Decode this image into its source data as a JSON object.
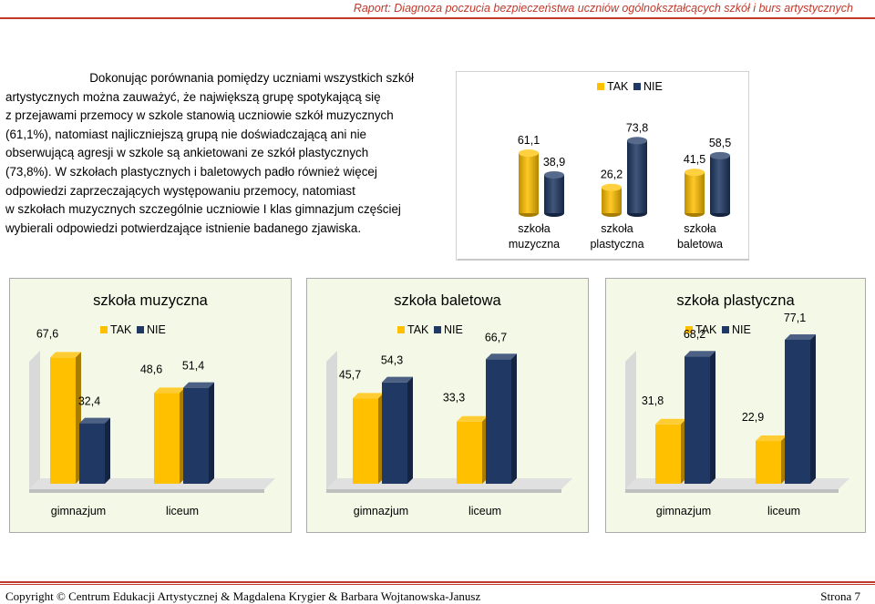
{
  "header": {
    "title": "Raport: Diagnoza poczucia bezpieczeństwa uczniów ogólnokształcących szkół i burs artystycznych"
  },
  "paragraph": {
    "lines": [
      "Dokonując porównania pomiędzy uczniami wszystkich szkół",
      "artystycznych można zauważyć, że największą grupę spotykającą się",
      "z przejawami przemocy w szkole stanowią uczniowie szkół muzycznych",
      "(61,1%), natomiast najliczniejszą grupą nie doświadczającą ani nie",
      "obserwującą agresji w szkole są ankietowani ze szkół plastycznych",
      "(73,8%). W szkołach plastycznych i baletowych padło również więcej",
      "odpowiedzi zaprzeczających występowaniu przemocy, natomiast",
      "w szkołach muzycznych szczególnie uczniowie I klas gimnazjum częściej",
      "wybierali odpowiedzi potwierdzające istnienie badanego zjawiska."
    ]
  },
  "colors": {
    "tak": "#FFC000",
    "nie": "#1F3864",
    "accent": "#C0392B"
  },
  "chart_data": [
    {
      "type": "bar",
      "title": "",
      "categories": [
        "szkoła muzyczna",
        "szkoła plastyczna",
        "szkoła baletowa"
      ],
      "category_lines": [
        [
          "szkoła",
          "muzyczna"
        ],
        [
          "szkoła",
          "plastyczna"
        ],
        [
          "szkoła",
          "baletowa"
        ]
      ],
      "series": [
        {
          "name": "TAK",
          "values": [
            61.1,
            26.2,
            41.5
          ]
        },
        {
          "name": "NIE",
          "values": [
            38.9,
            73.8,
            58.5
          ]
        }
      ],
      "value_labels": [
        [
          "61,1",
          "26,2",
          "41,5"
        ],
        [
          "38,9",
          "73,8",
          "58,5"
        ]
      ],
      "legend": "top",
      "grid": false
    },
    {
      "type": "bar",
      "title": "szkoła muzyczna",
      "categories": [
        "gimnazjum",
        "liceum"
      ],
      "series": [
        {
          "name": "TAK",
          "values": [
            67.6,
            48.6
          ]
        },
        {
          "name": "NIE",
          "values": [
            32.4,
            51.4
          ]
        }
      ],
      "value_labels": [
        [
          "67,6",
          "48,6"
        ],
        [
          "32,4",
          "51,4"
        ]
      ],
      "legend": "top",
      "grid": false
    },
    {
      "type": "bar",
      "title": "szkoła baletowa",
      "categories": [
        "gimnazjum",
        "liceum"
      ],
      "series": [
        {
          "name": "TAK",
          "values": [
            45.7,
            33.3
          ]
        },
        {
          "name": "NIE",
          "values": [
            54.3,
            66.7
          ]
        }
      ],
      "value_labels": [
        [
          "45,7",
          "33,3"
        ],
        [
          "54,3",
          "66,7"
        ]
      ],
      "legend": "top",
      "grid": false
    },
    {
      "type": "bar",
      "title": "szkoła plastyczna",
      "categories": [
        "gimnazjum",
        "liceum"
      ],
      "series": [
        {
          "name": "TAK",
          "values": [
            31.8,
            22.9
          ]
        },
        {
          "name": "NIE",
          "values": [
            68.2,
            77.1
          ]
        }
      ],
      "value_labels": [
        [
          "31,8",
          "22,9"
        ],
        [
          "68,2",
          "77,1"
        ]
      ],
      "legend": "top",
      "grid": false
    }
  ],
  "footer": {
    "copyright": "Copyright © Centrum Edukacji Artystycznej & Magdalena Krygier & Barbara Wojtanowska-Janusz",
    "page": "Strona 7"
  }
}
